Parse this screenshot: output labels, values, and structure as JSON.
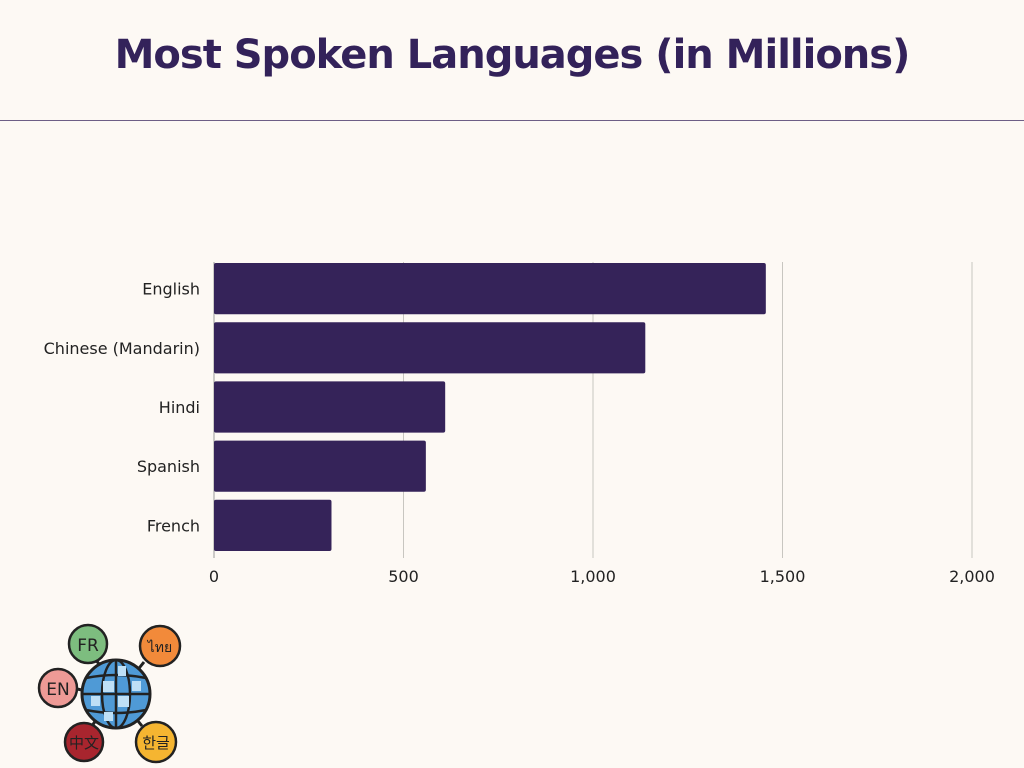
{
  "page": {
    "title": "Most Spoken Languages (in Millions)"
  },
  "chart_data": {
    "type": "bar",
    "orientation": "horizontal",
    "title": "Most Spoken Languages (in Millions)",
    "categories": [
      "English",
      "Chinese (Mandarin)",
      "Hindi",
      "Spanish",
      "French"
    ],
    "values": [
      1456,
      1138,
      610,
      559,
      310
    ],
    "xlim": [
      0,
      2000
    ],
    "xticks": [
      0,
      500,
      1000,
      1500,
      2000
    ],
    "xtick_labels": [
      "0",
      "500",
      "1,000",
      "1,500",
      "2,000"
    ],
    "xlabel": "",
    "ylabel": "",
    "grid": "vertical",
    "bar_color": "#352359",
    "grid_color": "#c8c6c0"
  },
  "illustration": {
    "icon": "globe-speech-bubbles-icon",
    "bubbles": [
      {
        "text": "FR",
        "color": "#7dbd7f"
      },
      {
        "text": "ไทย",
        "color": "#f28a3a"
      },
      {
        "text": "EN",
        "color": "#ee9a96"
      },
      {
        "text": "中文",
        "color": "#a8252e"
      },
      {
        "text": "한글",
        "color": "#f5b531"
      }
    ]
  }
}
